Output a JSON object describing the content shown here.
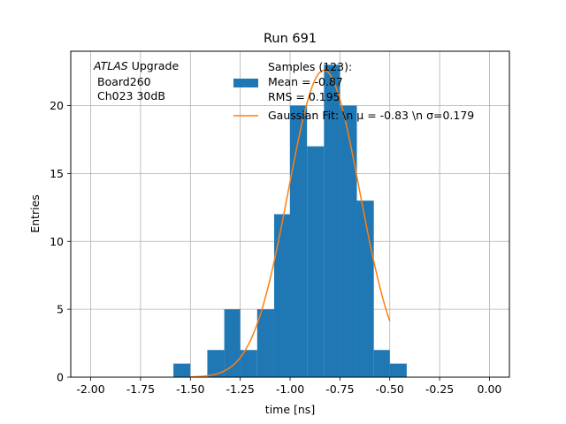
{
  "chart_data": {
    "type": "bar",
    "title": "Run 691",
    "xlabel": "time [ns]",
    "ylabel": "Entries",
    "xlim": [
      -2.1,
      0.1
    ],
    "ylim": [
      0,
      24
    ],
    "xticks": [
      "-2.00",
      "-1.75",
      "-1.50",
      "-1.25",
      "-1.00",
      "-0.75",
      "-0.50",
      "-0.25",
      "0.00"
    ],
    "xtick_values": [
      -2.0,
      -1.75,
      -1.5,
      -1.25,
      -1.0,
      -0.75,
      -0.5,
      -0.25,
      0.0
    ],
    "yticks": [
      "0",
      "5",
      "10",
      "15",
      "20"
    ],
    "ytick_values": [
      0,
      5,
      10,
      15,
      20
    ],
    "grid": true,
    "legend_position": "top-right",
    "annotation": {
      "italic": "ATLAS",
      "rest": " Upgrade",
      "line2": "Board260",
      "line3": "Ch023 30dB"
    },
    "histogram": {
      "name_lines": [
        "Samples (123):",
        " Mean = -0.87",
        " RMS = 0.195"
      ],
      "color": "#1f77b4",
      "bin_edges": [
        -1.585,
        -1.5,
        -1.415,
        -1.33,
        -1.25,
        -1.165,
        -1.08,
        -1.0,
        -0.915,
        -0.83,
        -0.75,
        -0.665,
        -0.58,
        -0.5,
        -0.415
      ],
      "counts": [
        1,
        0,
        2,
        5,
        2,
        5,
        12,
        20,
        17,
        23,
        20,
        13,
        2,
        1
      ]
    },
    "fit": {
      "label": "Gaussian Fit: \\n μ = -0.83 \\n σ=0.179",
      "color": "#ff7f0e",
      "mu": -0.83,
      "sigma": 0.179,
      "amplitude": 22.6,
      "x_range": [
        -1.5,
        -0.5
      ]
    }
  }
}
